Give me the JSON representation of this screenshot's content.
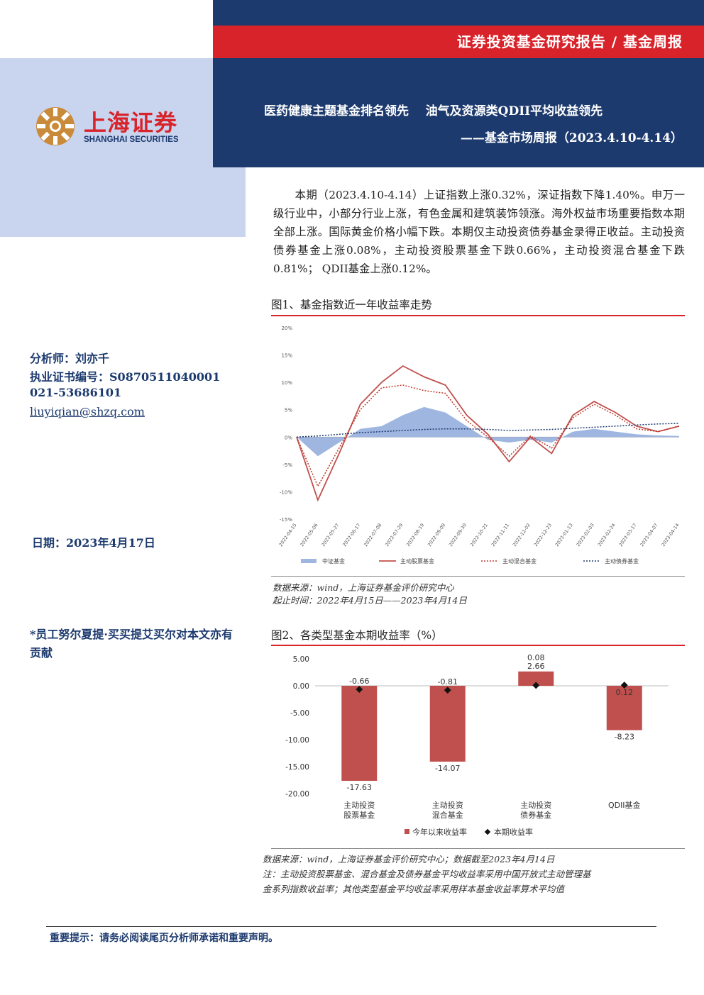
{
  "header": {
    "report_type": "证券投资基金研究报告 / 基金周报",
    "title_line1": "医药健康主题基金排名领先    油气及资源类QDII平均收益领先",
    "title_line2": "——基金市场周报（2023.4.10-4.14）"
  },
  "logo": {
    "name_cn": "上海证券",
    "name_en": "SHANGHAI SECURITIES"
  },
  "summary": "本期（2023.4.10-4.14）上证指数上涨0.32%，深证指数下降1.40%。申万一级行业中，小部分行业上涨，有色金属和建筑装饰领涨。海外权益市场重要指数本期全部上涨。国际黄金价格小幅下跌。本期仅主动投资债券基金录得正收益。主动投资债券基金上涨0.08%，主动投资股票基金下跌0.66%，主动投资混合基金下跌0.81%； QDII基金上涨0.12%。",
  "analyst": {
    "name": "分析师：刘亦千",
    "license": "执业证书编号：S0870511040001",
    "phone": "021-53686101",
    "email": "liuyiqian@shzq.com"
  },
  "date": "日期：2023年4月17日",
  "contributor": "*员工努尔夏提·买买提艾买尔对本文亦有贡献",
  "figure1": {
    "title": "图1、基金指数近一年收益率走势",
    "source": "数据来源：wind，上海证券基金评价研究中心",
    "period": "起止时间：2022年4月15日——2023年4月14日"
  },
  "figure2": {
    "title": "图2、各类型基金本期收益率（%）",
    "source": "数据来源：wind，上海证券基金评价研究中心；数据截至2023年4月14日",
    "note_line1": "注：主动投资股票基金、混合基金及债券基金平均收益率采用中国开放式主动管理基",
    "note_line2": "金系列指数收益率；其他类型基金平均收益率采用样本基金收益率算术平均值"
  },
  "footer": "重要提示：请务必阅读尾页分析师承诺和重要声明。",
  "colors": {
    "navy": "#1c3a6e",
    "red": "#d8232a",
    "bar": "#c0504d",
    "area": "#9fb6e0"
  },
  "chart_data": [
    {
      "type": "line",
      "ylim": [
        -0.15,
        0.2
      ],
      "yticks": [
        "20%",
        "15%",
        "10%",
        "5%",
        "0%",
        "-5%",
        "-10%",
        "-15%"
      ],
      "x": [
        "2022-04-15",
        "2022-05-06",
        "2022-05-27",
        "2022-06-17",
        "2022-07-08",
        "2022-07-29",
        "2022-08-19",
        "2022-09-09",
        "2022-09-30",
        "2022-10-21",
        "2022-11-11",
        "2022-12-02",
        "2022-12-23",
        "2023-01-13",
        "2023-02-03",
        "2023-02-24",
        "2023-03-17",
        "2023-04-07",
        "2023-04-14"
      ],
      "series": [
        {
          "name": "中证基金",
          "style": "area",
          "values": [
            0.0,
            -0.035,
            -0.01,
            0.015,
            0.02,
            0.04,
            0.055,
            0.045,
            0.02,
            -0.005,
            -0.01,
            -0.005,
            -0.01,
            0.01,
            0.015,
            0.01,
            0.005,
            0.003,
            0.002
          ]
        },
        {
          "name": "主动股票基金",
          "style": "solid",
          "values": [
            0.0,
            -0.115,
            -0.03,
            0.06,
            0.1,
            0.13,
            0.11,
            0.095,
            0.04,
            0.005,
            -0.045,
            0.0,
            -0.03,
            0.04,
            0.065,
            0.045,
            0.02,
            0.01,
            0.02
          ]
        },
        {
          "name": "主动混合基金",
          "style": "dotted",
          "values": [
            0.0,
            -0.09,
            -0.02,
            0.05,
            0.09,
            0.095,
            0.085,
            0.08,
            0.03,
            0.0,
            -0.035,
            0.002,
            -0.02,
            0.035,
            0.06,
            0.04,
            0.015,
            0.01,
            0.02
          ]
        },
        {
          "name": "主动债券基金",
          "style": "dotted-navy",
          "values": [
            0.0,
            0.002,
            0.005,
            0.008,
            0.01,
            0.012,
            0.014,
            0.015,
            0.015,
            0.014,
            0.012,
            0.013,
            0.014,
            0.016,
            0.018,
            0.02,
            0.022,
            0.024,
            0.025
          ]
        }
      ]
    },
    {
      "type": "bar",
      "categories": [
        "主动投资\n股票基金",
        "主动投资\n混合基金",
        "主动投资\n债券基金",
        "QDII基金"
      ],
      "yticks": [
        "5.00",
        "0.00",
        "-5.00",
        "-10.00",
        "-15.00",
        "-20.00"
      ],
      "ylim": [
        -20,
        5
      ],
      "series": [
        {
          "name": "今年以来收益率",
          "values": [
            -17.63,
            -14.07,
            2.66,
            -8.23
          ],
          "labels": [
            "-17.63",
            "-14.07",
            "2.66",
            "-8.23"
          ]
        },
        {
          "name": "本期收益率",
          "values": [
            -0.66,
            -0.81,
            0.08,
            0.12
          ],
          "labels": [
            "-0.66",
            "-0.81",
            "0.08",
            "0.12"
          ]
        }
      ]
    }
  ]
}
